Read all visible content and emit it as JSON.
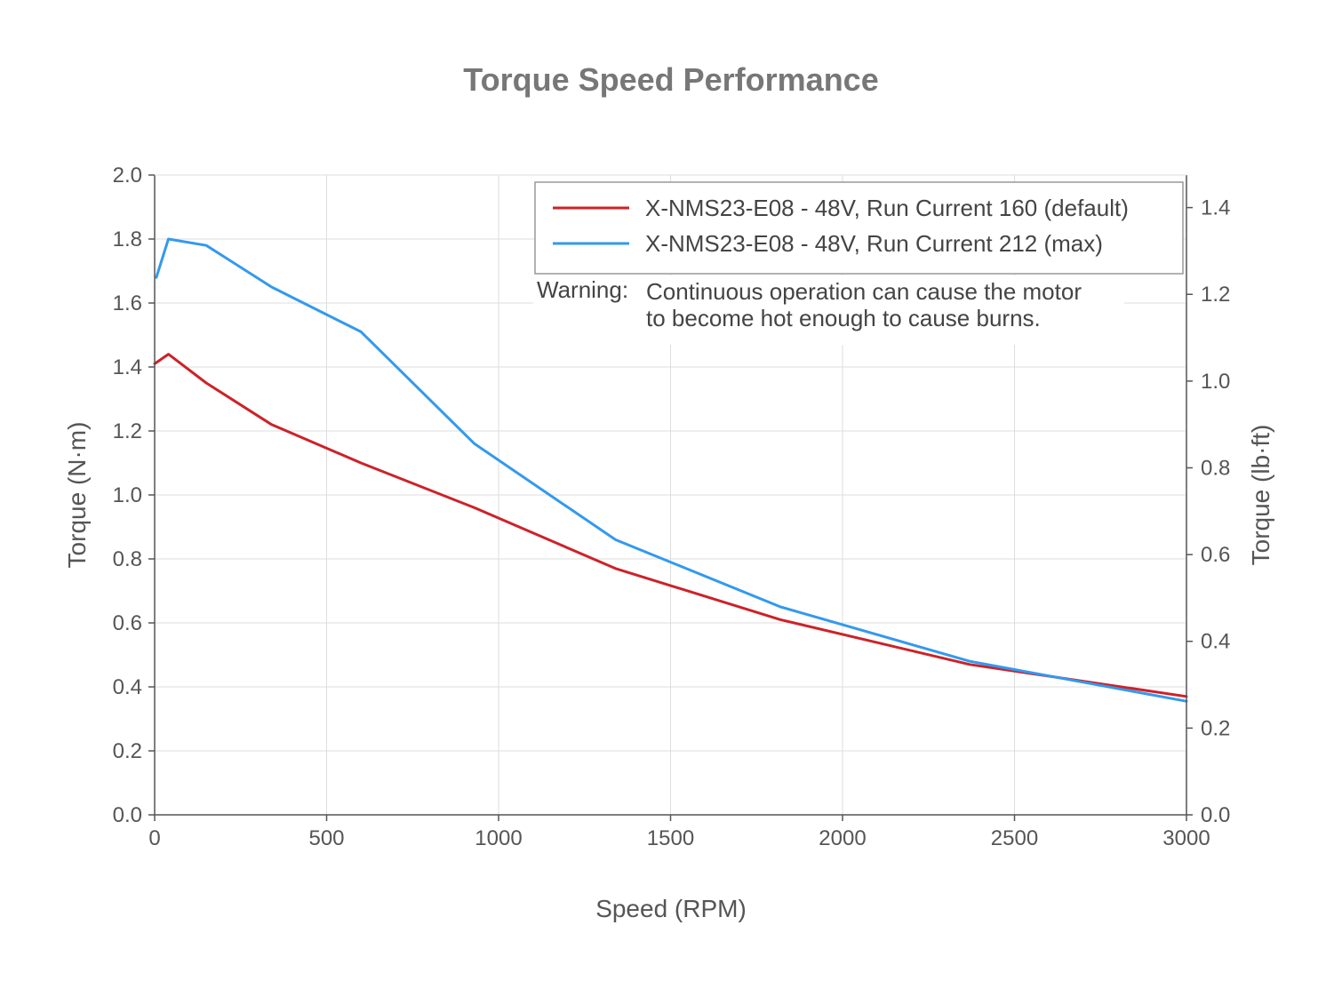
{
  "chart_data": {
    "type": "line",
    "title": "Torque Speed Performance",
    "xlabel": "Speed (RPM)",
    "ylabel": "Torque (N·m)",
    "y2label": "Torque (lb·ft)",
    "xlim": [
      0,
      3000
    ],
    "ylim": [
      0,
      2.0
    ],
    "y2lim": [
      0,
      1.475
    ],
    "xticks": [
      0,
      500,
      1000,
      1500,
      2000,
      2500,
      3000
    ],
    "yticks": [
      0.0,
      0.2,
      0.4,
      0.6,
      0.8,
      1.0,
      1.2,
      1.4,
      1.6,
      1.8,
      2.0
    ],
    "y2ticks": [
      0.0,
      0.2,
      0.4,
      0.6,
      0.8,
      1.0,
      1.2,
      1.4
    ],
    "xtick_labels": [
      "0",
      "500",
      "1000",
      "1500",
      "2000",
      "2500",
      "3000"
    ],
    "ytick_labels": [
      "0.0",
      "0.2",
      "0.4",
      "0.6",
      "0.8",
      "1.0",
      "1.2",
      "1.4",
      "1.6",
      "1.8",
      "2.0"
    ],
    "y2tick_labels": [
      "0.0",
      "0.2",
      "0.4",
      "0.6",
      "0.8",
      "1.0",
      "1.2",
      "1.4"
    ],
    "grid": true,
    "legend_position": "top-right",
    "series": [
      {
        "name": "X-NMS23-E08 - 48V, Run Current 160 (default)",
        "color": "#cc2229",
        "x": [
          0,
          40,
          150,
          340,
          600,
          930,
          1340,
          1820,
          2370,
          3000
        ],
        "y": [
          1.41,
          1.44,
          1.35,
          1.22,
          1.1,
          0.96,
          0.77,
          0.61,
          0.47,
          0.37
        ]
      },
      {
        "name": "X-NMS23-E08 - 48V, Run Current 212 (max)",
        "color": "#3399ee",
        "x": [
          5,
          40,
          150,
          340,
          600,
          930,
          1340,
          1820,
          2370,
          3000
        ],
        "y": [
          1.68,
          1.8,
          1.78,
          1.65,
          1.51,
          1.16,
          0.86,
          0.65,
          0.48,
          0.355
        ]
      }
    ],
    "annotation": {
      "label": "Warning:",
      "lines": [
        "Continuous operation can cause the motor",
        "to become hot enough to cause burns."
      ]
    },
    "colors": {
      "axis": "#555555",
      "grid": "#dddddd",
      "title": "#777777"
    }
  }
}
